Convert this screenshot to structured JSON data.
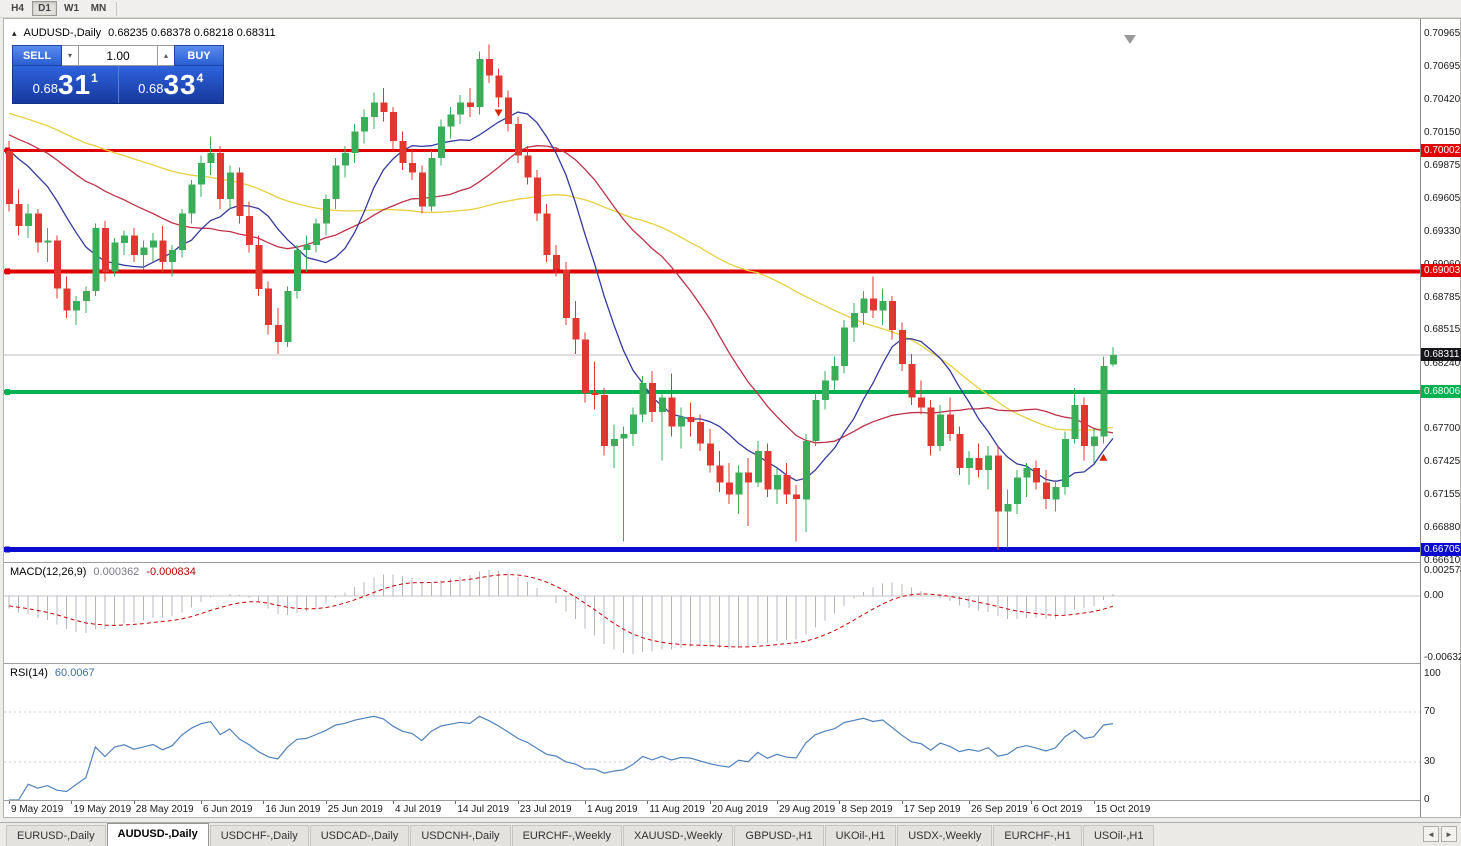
{
  "window": {
    "toolbar_periods": [
      {
        "label": "H4",
        "active": false
      },
      {
        "label": "D1",
        "active": true
      },
      {
        "label": "W1",
        "active": false
      },
      {
        "label": "MN",
        "active": false
      }
    ]
  },
  "header": {
    "collapse_icon": "▴",
    "symbol": "AUDUSD-,Daily",
    "ohlc": "0.68235 0.68378 0.68218 0.68311"
  },
  "trade_panel": {
    "sell_label": "SELL",
    "buy_label": "BUY",
    "volume": "1.00",
    "spin_down": "▾",
    "spin_up": "▴",
    "sell_price": {
      "prefix": "0.68",
      "big": "31",
      "sup": "1"
    },
    "buy_price": {
      "prefix": "0.68",
      "big": "33",
      "sup": "4"
    }
  },
  "indicators": {
    "macd": {
      "name": "MACD(12,26,9)",
      "value_main": "0.000362",
      "value_signal": "-0.000834",
      "scale": [
        "0.002574",
        "0.00",
        "-0.006326"
      ]
    },
    "rsi": {
      "name": "RSI(14)",
      "value": "60.0067",
      "scale": [
        "100",
        "70",
        "30",
        "0"
      ],
      "levels": [
        70,
        30
      ]
    }
  },
  "chart_data": {
    "type": "candlestick",
    "symbol": "AUDUSD",
    "timeframe": "Daily",
    "price_axis": {
      "ticks": [
        "0.70965",
        "0.70695",
        "0.70420",
        "0.70150",
        "0.69875",
        "0.69605",
        "0.69330",
        "0.69060",
        "0.68785",
        "0.68515",
        "0.68240",
        "0.67970",
        "0.67700",
        "0.67425",
        "0.67155",
        "0.66880",
        "0.66610"
      ]
    },
    "x_axis": {
      "labels": [
        {
          "text": "9 May 2019",
          "idx": 0
        },
        {
          "text": "19 May 2019",
          "idx": 6.5
        },
        {
          "text": "28 May 2019",
          "idx": 13
        },
        {
          "text": "6 Jun 2019",
          "idx": 20
        },
        {
          "text": "16 Jun 2019",
          "idx": 26.5
        },
        {
          "text": "25 Jun 2019",
          "idx": 33
        },
        {
          "text": "4 Jul 2019",
          "idx": 40
        },
        {
          "text": "14 Jul 2019",
          "idx": 46.5
        },
        {
          "text": "23 Jul 2019",
          "idx": 53
        },
        {
          "text": "1 Aug 2019",
          "idx": 60
        },
        {
          "text": "11 Aug 2019",
          "idx": 66.5
        },
        {
          "text": "20 Aug 2019",
          "idx": 73
        },
        {
          "text": "29 Aug 2019",
          "idx": 80
        },
        {
          "text": "8 Sep 2019",
          "idx": 86.5
        },
        {
          "text": "17 Sep 2019",
          "idx": 93
        },
        {
          "text": "26 Sep 2019",
          "idx": 100
        },
        {
          "text": "6 Oct 2019",
          "idx": 106.5
        },
        {
          "text": "15 Oct 2019",
          "idx": 113
        }
      ]
    },
    "hlines": [
      {
        "price": 0.70002,
        "label": "0.70002",
        "color": "#e00000",
        "width": 3
      },
      {
        "price": 0.69003,
        "label": "0.69003",
        "color": "#e00000",
        "width": 4
      },
      {
        "price": 0.68006,
        "label": "0.68006",
        "color": "#00b14f",
        "width": 4
      },
      {
        "price": 0.66705,
        "label": "0.66705",
        "color": "#0a0ad0",
        "width": 5
      }
    ],
    "bid": {
      "price": 0.68311,
      "label": "0.68311",
      "color": "#15151a"
    },
    "moving_averages": [
      {
        "period": 10,
        "color": "#333a9e",
        "name": "fast-ma-blue"
      },
      {
        "period": 25,
        "color": "#bf3148",
        "name": "mid-ma-red"
      },
      {
        "period": 50,
        "color": "#e9cf3c",
        "name": "slow-ma-yellow"
      }
    ],
    "colors": {
      "up": "#3aad58",
      "down": "#e03830",
      "macd_hist": "#b4b4c6",
      "macd_signal": "#cc0000",
      "rsi_line": "#4f81bd"
    },
    "markers": [
      {
        "idx": 51,
        "price": 0.703,
        "dir": "down",
        "color": "#dd2200"
      },
      {
        "idx": 114,
        "price": 0.6748,
        "dir": "up",
        "color": "#dd2200"
      }
    ],
    "candles": [
      [
        0.7,
        0.7008,
        0.695,
        0.6956
      ],
      [
        0.6956,
        0.6968,
        0.693,
        0.6938
      ],
      [
        0.6938,
        0.6956,
        0.6928,
        0.6948
      ],
      [
        0.6948,
        0.6952,
        0.6916,
        0.6924
      ],
      [
        0.6924,
        0.6936,
        0.6908,
        0.6926
      ],
      [
        0.6926,
        0.693,
        0.6878,
        0.6886
      ],
      [
        0.6886,
        0.6896,
        0.6862,
        0.6868
      ],
      [
        0.6868,
        0.688,
        0.6856,
        0.6876
      ],
      [
        0.6876,
        0.6888,
        0.6866,
        0.6884
      ],
      [
        0.6884,
        0.694,
        0.688,
        0.6936
      ],
      [
        0.6936,
        0.6942,
        0.6892,
        0.69
      ],
      [
        0.69,
        0.6928,
        0.6896,
        0.6924
      ],
      [
        0.6924,
        0.6934,
        0.6914,
        0.693
      ],
      [
        0.693,
        0.6936,
        0.6908,
        0.6914
      ],
      [
        0.6914,
        0.6926,
        0.6902,
        0.692
      ],
      [
        0.692,
        0.6932,
        0.6908,
        0.6926
      ],
      [
        0.6926,
        0.6938,
        0.69,
        0.6908
      ],
      [
        0.6908,
        0.6922,
        0.6896,
        0.6918
      ],
      [
        0.6918,
        0.6952,
        0.6912,
        0.6948
      ],
      [
        0.6948,
        0.6976,
        0.694,
        0.6972
      ],
      [
        0.6972,
        0.6996,
        0.6962,
        0.699
      ],
      [
        0.699,
        0.7012,
        0.698,
        0.6998
      ],
      [
        0.6998,
        0.7004,
        0.6952,
        0.696
      ],
      [
        0.696,
        0.6988,
        0.6952,
        0.6982
      ],
      [
        0.6982,
        0.6986,
        0.694,
        0.6946
      ],
      [
        0.6946,
        0.6958,
        0.6916,
        0.6922
      ],
      [
        0.6922,
        0.693,
        0.688,
        0.6886
      ],
      [
        0.6886,
        0.6892,
        0.6848,
        0.6856
      ],
      [
        0.6856,
        0.687,
        0.6832,
        0.6842
      ],
      [
        0.6842,
        0.6888,
        0.6838,
        0.6884
      ],
      [
        0.6884,
        0.6922,
        0.6878,
        0.6918
      ],
      [
        0.6918,
        0.693,
        0.69,
        0.6922
      ],
      [
        0.6922,
        0.6944,
        0.6916,
        0.694
      ],
      [
        0.694,
        0.6964,
        0.693,
        0.696
      ],
      [
        0.696,
        0.6994,
        0.6952,
        0.6988
      ],
      [
        0.6988,
        0.7004,
        0.6978,
        0.6998
      ],
      [
        0.6998,
        0.7022,
        0.699,
        0.7016
      ],
      [
        0.7016,
        0.7034,
        0.7006,
        0.7028
      ],
      [
        0.7028,
        0.7048,
        0.7018,
        0.704
      ],
      [
        0.704,
        0.7052,
        0.7024,
        0.7032
      ],
      [
        0.7032,
        0.7036,
        0.7,
        0.7008
      ],
      [
        0.7008,
        0.7016,
        0.6984,
        0.699
      ],
      [
        0.699,
        0.7002,
        0.6976,
        0.6982
      ],
      [
        0.6982,
        0.6988,
        0.6948,
        0.6954
      ],
      [
        0.6954,
        0.7,
        0.695,
        0.6994
      ],
      [
        0.6994,
        0.7026,
        0.6988,
        0.702
      ],
      [
        0.702,
        0.7036,
        0.701,
        0.703
      ],
      [
        0.703,
        0.7046,
        0.7022,
        0.704
      ],
      [
        0.704,
        0.7052,
        0.7028,
        0.7036
      ],
      [
        0.7036,
        0.7082,
        0.703,
        0.7076
      ],
      [
        0.7076,
        0.7088,
        0.7056,
        0.7062
      ],
      [
        0.7062,
        0.7068,
        0.7036,
        0.7044
      ],
      [
        0.7044,
        0.705,
        0.7016,
        0.7022
      ],
      [
        0.7022,
        0.7028,
        0.699,
        0.6996
      ],
      [
        0.6996,
        0.7004,
        0.6972,
        0.6978
      ],
      [
        0.6978,
        0.6984,
        0.6942,
        0.6948
      ],
      [
        0.6948,
        0.6956,
        0.6908,
        0.6914
      ],
      [
        0.6914,
        0.6922,
        0.6896,
        0.6902
      ],
      [
        0.6902,
        0.6908,
        0.6856,
        0.6862
      ],
      [
        0.6862,
        0.6876,
        0.6832,
        0.6844
      ],
      [
        0.6844,
        0.685,
        0.6792,
        0.68
      ],
      [
        0.68,
        0.6826,
        0.6786,
        0.6798
      ],
      [
        0.6798,
        0.6804,
        0.6748,
        0.6756
      ],
      [
        0.6756,
        0.6774,
        0.6738,
        0.6762
      ],
      [
        0.6762,
        0.6772,
        0.6677,
        0.6766
      ],
      [
        0.6766,
        0.6788,
        0.6756,
        0.6782
      ],
      [
        0.6782,
        0.6814,
        0.6776,
        0.6808
      ],
      [
        0.6808,
        0.6818,
        0.6776,
        0.6784
      ],
      [
        0.6784,
        0.68,
        0.6744,
        0.6796
      ],
      [
        0.6796,
        0.6816,
        0.6764,
        0.6772
      ],
      [
        0.6772,
        0.6788,
        0.6754,
        0.678
      ],
      [
        0.678,
        0.6792,
        0.6764,
        0.6776
      ],
      [
        0.6776,
        0.6782,
        0.6752,
        0.6758
      ],
      [
        0.6758,
        0.677,
        0.6734,
        0.674
      ],
      [
        0.674,
        0.6752,
        0.6718,
        0.6726
      ],
      [
        0.6726,
        0.6742,
        0.6708,
        0.6716
      ],
      [
        0.6716,
        0.674,
        0.67,
        0.6734
      ],
      [
        0.6734,
        0.6746,
        0.669,
        0.6726
      ],
      [
        0.6726,
        0.676,
        0.6722,
        0.6752
      ],
      [
        0.6752,
        0.6758,
        0.6714,
        0.672
      ],
      [
        0.672,
        0.6738,
        0.6708,
        0.6732
      ],
      [
        0.6732,
        0.6742,
        0.6708,
        0.6716
      ],
      [
        0.6716,
        0.6724,
        0.6677,
        0.6712
      ],
      [
        0.6712,
        0.6766,
        0.6685,
        0.676
      ],
      [
        0.676,
        0.68,
        0.6756,
        0.6794
      ],
      [
        0.6794,
        0.6818,
        0.6786,
        0.681
      ],
      [
        0.681,
        0.683,
        0.6802,
        0.6822
      ],
      [
        0.6822,
        0.686,
        0.6816,
        0.6854
      ],
      [
        0.6854,
        0.6874,
        0.6842,
        0.6866
      ],
      [
        0.6866,
        0.6884,
        0.6856,
        0.6878
      ],
      [
        0.6878,
        0.6896,
        0.6862,
        0.6868
      ],
      [
        0.6868,
        0.6886,
        0.6856,
        0.6876
      ],
      [
        0.6876,
        0.688,
        0.6844,
        0.6852
      ],
      [
        0.6852,
        0.6858,
        0.6818,
        0.6824
      ],
      [
        0.6824,
        0.6832,
        0.679,
        0.6796
      ],
      [
        0.6796,
        0.681,
        0.6782,
        0.6788
      ],
      [
        0.6788,
        0.6794,
        0.6748,
        0.6756
      ],
      [
        0.6756,
        0.679,
        0.6752,
        0.6782
      ],
      [
        0.6782,
        0.6796,
        0.676,
        0.6766
      ],
      [
        0.6766,
        0.6772,
        0.6732,
        0.6738
      ],
      [
        0.6738,
        0.6752,
        0.6724,
        0.6746
      ],
      [
        0.6746,
        0.6758,
        0.673,
        0.6736
      ],
      [
        0.6736,
        0.6756,
        0.672,
        0.6748
      ],
      [
        0.6748,
        0.6756,
        0.667,
        0.6702
      ],
      [
        0.6702,
        0.672,
        0.6672,
        0.6708
      ],
      [
        0.6708,
        0.6736,
        0.67,
        0.673
      ],
      [
        0.673,
        0.6742,
        0.6714,
        0.6738
      ],
      [
        0.6738,
        0.6744,
        0.672,
        0.6726
      ],
      [
        0.6726,
        0.6736,
        0.6704,
        0.6712
      ],
      [
        0.6712,
        0.6728,
        0.6702,
        0.6722
      ],
      [
        0.6722,
        0.6768,
        0.6716,
        0.6762
      ],
      [
        0.6762,
        0.6804,
        0.6758,
        0.679
      ],
      [
        0.679,
        0.6796,
        0.6744,
        0.6756
      ],
      [
        0.6756,
        0.677,
        0.6742,
        0.6764
      ],
      [
        0.6764,
        0.683,
        0.6758,
        0.6822
      ],
      [
        0.68235,
        0.68378,
        0.68218,
        0.68311
      ]
    ]
  },
  "tabs": {
    "items": [
      "EURUSD-,Daily",
      "AUDUSD-,Daily",
      "USDCHF-,Daily",
      "USDCAD-,Daily",
      "USDCNH-,Daily",
      "EURCHF-,Weekly",
      "XAUUSD-,Weekly",
      "GBPUSD-,H1",
      "UKOil-,H1",
      "USDX-,Weekly",
      "EURCHF-,H1",
      "USOil-,H1"
    ],
    "active_index": 1,
    "scroll_left": "◄",
    "scroll_right": "►"
  }
}
